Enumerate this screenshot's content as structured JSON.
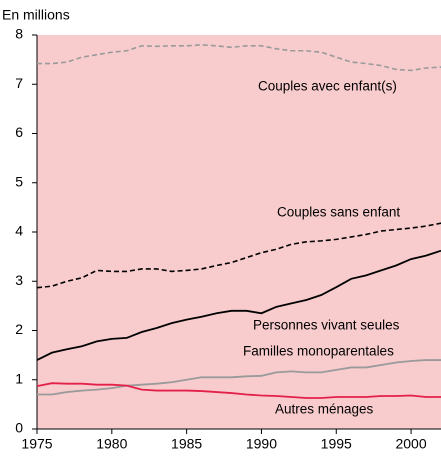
{
  "chart_data": {
    "type": "line",
    "y_label": "En millions",
    "x": [
      1975,
      1976,
      1977,
      1978,
      1979,
      1980,
      1981,
      1982,
      1983,
      1984,
      1985,
      1986,
      1987,
      1988,
      1989,
      1990,
      1991,
      1992,
      1993,
      1994,
      1995,
      1996,
      1997,
      1998,
      1999,
      2000,
      2001,
      2002
    ],
    "xlim": [
      1975,
      2002
    ],
    "xticks": [
      1975,
      1980,
      1985,
      1990,
      1995,
      2000
    ],
    "ylim": [
      0,
      8
    ],
    "yticks": [
      0,
      1,
      2,
      3,
      4,
      5,
      6,
      7,
      8
    ],
    "background": "#f8cccd",
    "series": [
      {
        "name": "Couples avec enfant(s)",
        "color": "#9a9a9a",
        "dashed": true,
        "values": [
          7.42,
          7.42,
          7.45,
          7.55,
          7.6,
          7.65,
          7.68,
          7.78,
          7.77,
          7.78,
          7.78,
          7.8,
          7.78,
          7.75,
          7.78,
          7.78,
          7.72,
          7.68,
          7.68,
          7.65,
          7.55,
          7.45,
          7.42,
          7.38,
          7.3,
          7.28,
          7.33,
          7.35
        ]
      },
      {
        "name": "Couples sans enfant",
        "color": "#000000",
        "dashed": true,
        "values": [
          2.87,
          2.9,
          3.0,
          3.07,
          3.22,
          3.2,
          3.2,
          3.25,
          3.25,
          3.2,
          3.22,
          3.25,
          3.32,
          3.38,
          3.48,
          3.58,
          3.65,
          3.75,
          3.8,
          3.82,
          3.85,
          3.9,
          3.95,
          4.02,
          4.05,
          4.08,
          4.12,
          4.18
        ]
      },
      {
        "name": "Personnes vivant seules",
        "color": "#000000",
        "dashed": false,
        "values": [
          1.4,
          1.55,
          1.62,
          1.68,
          1.78,
          1.83,
          1.85,
          1.97,
          2.05,
          2.15,
          2.22,
          2.28,
          2.35,
          2.4,
          2.4,
          2.35,
          2.48,
          2.55,
          2.62,
          2.72,
          2.88,
          3.05,
          3.12,
          3.22,
          3.32,
          3.45,
          3.52,
          3.62
        ]
      },
      {
        "name": "Familles monoparentales",
        "color": "#9a9a9a",
        "dashed": false,
        "values": [
          0.7,
          0.7,
          0.75,
          0.78,
          0.8,
          0.83,
          0.88,
          0.9,
          0.92,
          0.95,
          1.0,
          1.05,
          1.05,
          1.05,
          1.07,
          1.08,
          1.15,
          1.17,
          1.15,
          1.15,
          1.2,
          1.25,
          1.25,
          1.3,
          1.35,
          1.38,
          1.4,
          1.4
        ]
      },
      {
        "name": "Autres ménages",
        "color": "#e3204a",
        "dashed": false,
        "values": [
          0.87,
          0.93,
          0.92,
          0.92,
          0.9,
          0.9,
          0.88,
          0.8,
          0.78,
          0.78,
          0.78,
          0.77,
          0.75,
          0.73,
          0.7,
          0.68,
          0.67,
          0.65,
          0.63,
          0.63,
          0.65,
          0.65,
          0.65,
          0.67,
          0.67,
          0.68,
          0.65,
          0.65
        ]
      }
    ]
  }
}
